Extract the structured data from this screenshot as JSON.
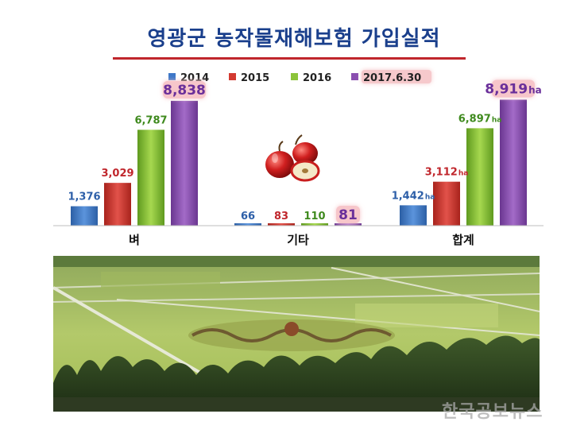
{
  "title": "영광군 농작물재해보험 가입실적",
  "watermark": "한국공보뉴스",
  "unit_suffix": "ha",
  "chart_data": {
    "type": "bar",
    "categories": [
      "벼",
      "기타",
      "합계"
    ],
    "series": [
      {
        "name": "2014",
        "values": [
          1376,
          66,
          1442
        ],
        "labels": [
          "1,376",
          "66",
          "1,442"
        ],
        "color": "#3f78c8",
        "label_color": "#2d5fa8"
      },
      {
        "name": "2015",
        "values": [
          3029,
          83,
          3112
        ],
        "labels": [
          "3,029",
          "83",
          "3,112"
        ],
        "color": "#d33a31",
        "label_color": "#c0262c"
      },
      {
        "name": "2016",
        "values": [
          6787,
          110,
          6897
        ],
        "labels": [
          "6,787",
          "110",
          "6,897"
        ],
        "color": "#8cc43a",
        "label_color": "#3f8a1e"
      },
      {
        "name": "2017.6.30",
        "values": [
          8838,
          81,
          8919
        ],
        "labels": [
          "8,838",
          "81",
          "8,919"
        ],
        "color": "#8a4fb0",
        "label_color": "#6a2f9a"
      }
    ],
    "ylim": [
      0,
      10000
    ],
    "legend": "top",
    "highlight_series": "2017.6.30",
    "unit_shown_on": "합계"
  }
}
